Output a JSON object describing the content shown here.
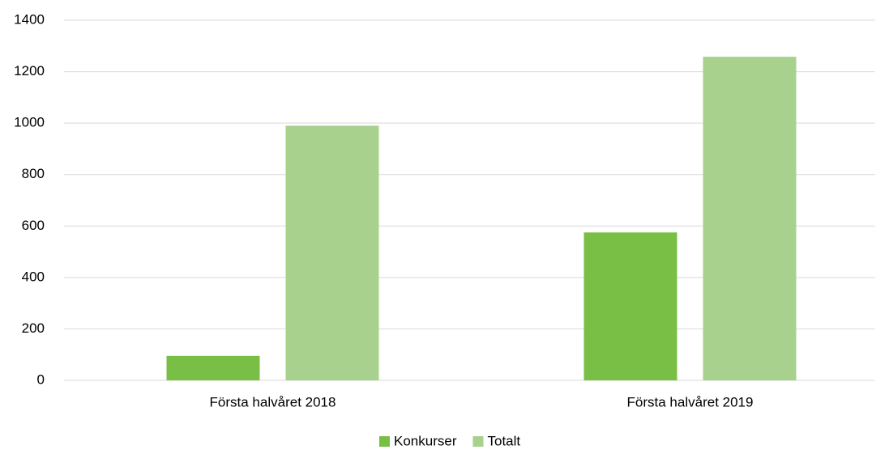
{
  "chart_data": {
    "type": "bar",
    "categories": [
      "Första halvåret 2018",
      "Första halvåret 2019"
    ],
    "series": [
      {
        "name": "Konkurser",
        "color": "#7abf45",
        "values": [
          95,
          575
        ]
      },
      {
        "name": "Totalt",
        "color": "#a9d18e",
        "values": [
          990,
          1258
        ]
      }
    ],
    "ylim": [
      0,
      1400
    ],
    "yticks": [
      0,
      200,
      400,
      600,
      800,
      1000,
      1200,
      1400
    ],
    "grid": true,
    "legend": "bottom"
  }
}
